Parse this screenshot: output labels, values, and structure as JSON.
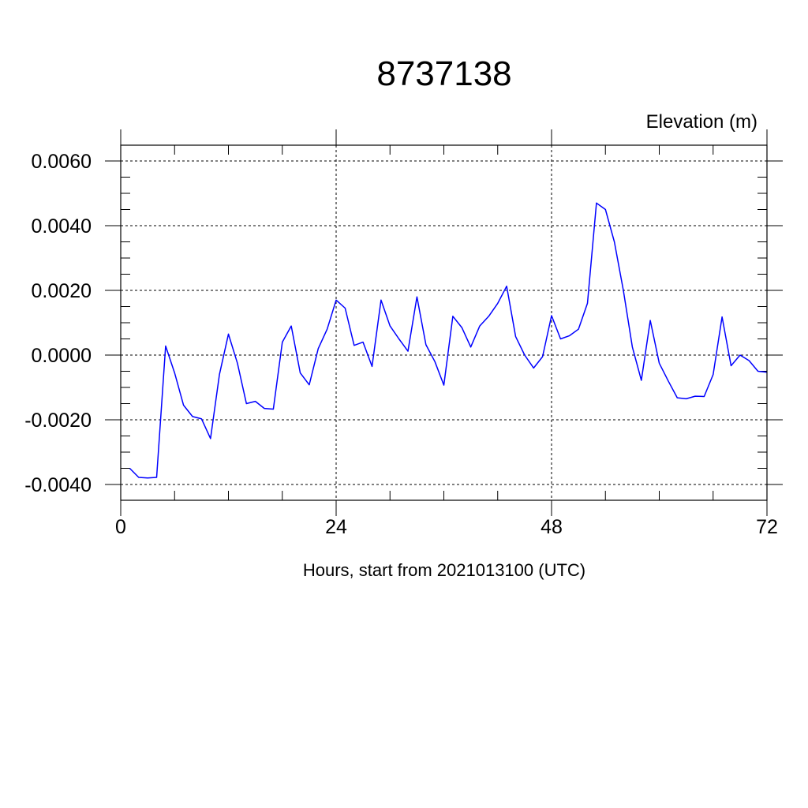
{
  "chart_data": {
    "type": "line",
    "title": "8737138",
    "unit_label": "Elevation (m)",
    "xlabel": "Hours, start from 2021013100 (UTC)",
    "ylabel": "",
    "xlim": [
      0,
      72
    ],
    "ylim": [
      -0.004,
      0.006
    ],
    "x_ticks": [
      0,
      24,
      48,
      72
    ],
    "x_tick_labels": [
      "0",
      "24",
      "48",
      "72"
    ],
    "y_ticks": [
      -0.004,
      -0.002,
      0.0,
      0.002,
      0.004,
      0.006
    ],
    "y_tick_labels": [
      "-0.0040",
      "-0.0020",
      "0.0000",
      "0.0020",
      "0.0040",
      "0.0060"
    ],
    "grid": true,
    "line_color": "#0000ff",
    "series": [
      {
        "x": [
          1,
          2,
          3,
          4,
          5,
          6,
          7,
          8,
          9,
          10,
          11,
          12,
          13,
          14,
          15,
          16,
          17,
          18,
          19,
          20,
          21,
          22,
          23,
          24,
          25,
          26,
          27,
          28,
          29,
          30,
          31,
          32,
          33,
          34,
          35,
          36,
          37,
          38,
          39,
          40,
          41,
          42,
          43,
          44,
          45,
          46,
          47,
          48,
          49,
          50,
          51,
          52,
          53,
          54,
          55,
          56,
          57,
          58,
          59,
          60,
          61,
          62,
          63,
          64,
          65,
          66,
          67,
          68,
          69,
          70,
          71,
          72
        ],
        "values": [
          -0.0035,
          -0.00378,
          -0.0038,
          -0.00378,
          0.00028,
          -0.00055,
          -0.00155,
          -0.0019,
          -0.00197,
          -0.00258,
          -0.0006,
          0.00065,
          -0.00025,
          -0.0015,
          -0.00143,
          -0.00165,
          -0.00167,
          0.0004,
          0.0009,
          -0.00055,
          -0.00092,
          0.0002,
          0.0008,
          0.0017,
          0.00145,
          0.0003,
          0.0004,
          -0.00035,
          0.0017,
          0.0009,
          0.0005,
          0.00012,
          0.0018,
          0.00032,
          -0.0002,
          -0.00093,
          0.0012,
          0.00085,
          0.00025,
          0.0009,
          0.0012,
          0.0016,
          0.00213,
          0.00057,
          0.0,
          -0.0004,
          -5e-05,
          0.00122,
          0.0005,
          0.0006,
          0.0008,
          0.0016,
          0.0047,
          0.0045,
          0.0035,
          0.002,
          0.00025,
          -0.00078,
          0.00107,
          -0.00025,
          -0.0008,
          -0.00132,
          -0.00135,
          -0.00127,
          -0.00128,
          -0.0006,
          0.00118,
          -0.00033,
          0.0,
          -0.00017,
          -0.0005,
          -0.00053
        ]
      }
    ]
  }
}
